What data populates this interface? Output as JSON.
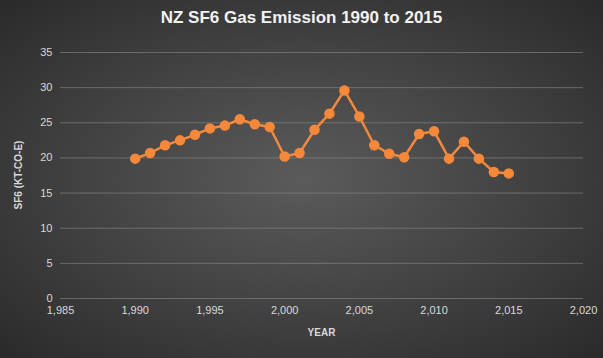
{
  "chart_data": {
    "type": "line",
    "title": "NZ SF6 Gas Emission 1990 to 2015",
    "x_label": "YEAR",
    "y_label": "SF6 (KT-CO-E)",
    "x": [
      1990,
      1991,
      1992,
      1993,
      1994,
      1995,
      1996,
      1997,
      1998,
      1999,
      2000,
      2001,
      2002,
      2003,
      2004,
      2005,
      2006,
      2007,
      2008,
      2009,
      2010,
      2011,
      2012,
      2013,
      2014,
      2015
    ],
    "values": [
      19.9,
      20.7,
      21.8,
      22.5,
      23.3,
      24.2,
      24.6,
      25.5,
      24.8,
      24.4,
      20.2,
      20.7,
      24.0,
      26.3,
      29.6,
      25.9,
      21.8,
      20.6,
      20.1,
      23.4,
      23.8,
      19.9,
      22.3,
      19.9,
      18.0,
      17.8
    ],
    "color": "#f5883a",
    "marker": "circle",
    "xlim": [
      1985,
      2020
    ],
    "xticks": [
      1985,
      1990,
      1995,
      2000,
      2005,
      2010,
      2015,
      2020
    ],
    "ylim": [
      0,
      35
    ],
    "yticks": [
      0,
      5,
      10,
      15,
      20,
      25,
      30,
      35
    ],
    "grid": true
  }
}
